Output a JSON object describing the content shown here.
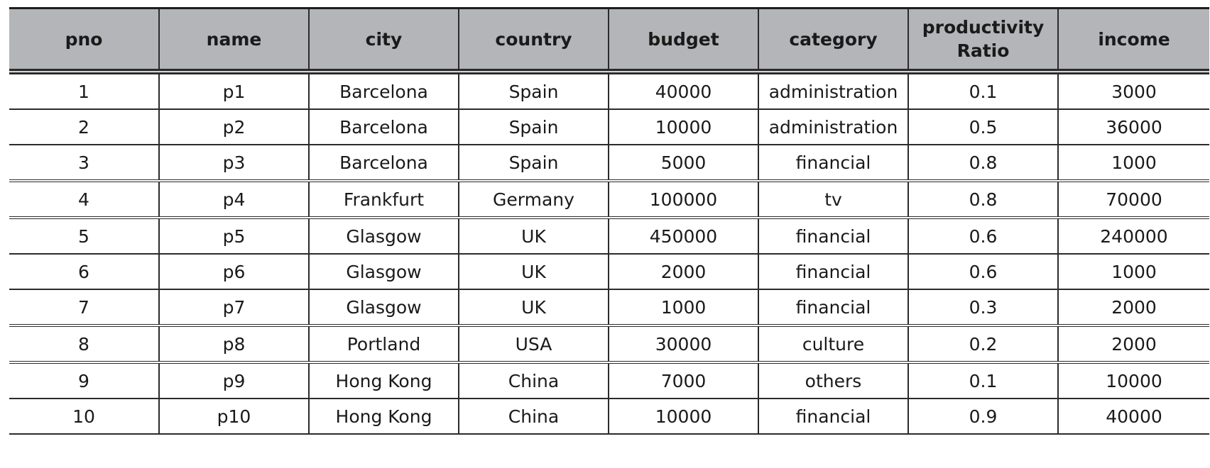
{
  "columns": [
    "pno",
    "name",
    "city",
    "country",
    "budget",
    "category",
    "productivity\nRatio",
    "income"
  ],
  "groups": [
    [
      [
        "1",
        "p1",
        "Barcelona",
        "Spain",
        "40000",
        "administration",
        "0.1",
        "3000"
      ],
      [
        "2",
        "p2",
        "Barcelona",
        "Spain",
        "10000",
        "administration",
        "0.5",
        "36000"
      ],
      [
        "3",
        "p3",
        "Barcelona",
        "Spain",
        "5000",
        "financial",
        "0.8",
        "1000"
      ]
    ],
    [
      [
        "4",
        "p4",
        "Frankfurt",
        "Germany",
        "100000",
        "tv",
        "0.8",
        "70000"
      ]
    ],
    [
      [
        "5",
        "p5",
        "Glasgow",
        "UK",
        "450000",
        "financial",
        "0.6",
        "240000"
      ],
      [
        "6",
        "p6",
        "Glasgow",
        "UK",
        "2000",
        "financial",
        "0.6",
        "1000"
      ],
      [
        "7",
        "p7",
        "Glasgow",
        "UK",
        "1000",
        "financial",
        "0.3",
        "2000"
      ]
    ],
    [
      [
        "8",
        "p8",
        "Portland",
        "USA",
        "30000",
        "culture",
        "0.2",
        "2000"
      ]
    ],
    [
      [
        "9",
        "p9",
        "Hong Kong",
        "China",
        "7000",
        "others",
        "0.1",
        "10000"
      ],
      [
        "10",
        "p10",
        "Hong Kong",
        "China",
        "10000",
        "financial",
        "0.9",
        "40000"
      ]
    ]
  ],
  "colors": {
    "header_background": "#b4b5b8",
    "border": "#2b2b2b",
    "text": "#1a1a1a"
  }
}
